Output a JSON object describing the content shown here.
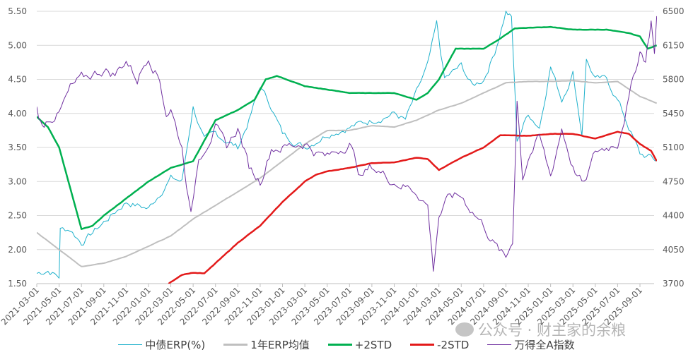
{
  "chart_data": {
    "type": "line",
    "title": "",
    "x_ticks": [
      "2021-03-01",
      "2021-05-01",
      "2021-07-01",
      "2021-09-01",
      "2021-11-01",
      "2022-01-01",
      "2022-03-01",
      "2022-05-01",
      "2022-07-01",
      "2022-09-01",
      "2022-11-01",
      "2023-01-01",
      "2023-03-01",
      "2023-05-01",
      "2023-07-01",
      "2023-09-01",
      "2023-11-01",
      "2024-01-01",
      "2024-03-01",
      "2024-05-01",
      "2024-07-01",
      "2024-09-01",
      "2024-11-01",
      "2025-01-01",
      "2025-03-01",
      "2025-05-01",
      "2025-07-01",
      "2025-09-01"
    ],
    "x_unit": "months since 2021-03",
    "y_left": {
      "min": 1.5,
      "max": 5.5,
      "ticks": [
        "1.50",
        "2.00",
        "2.50",
        "3.00",
        "3.50",
        "4.00",
        "4.50",
        "5.00",
        "5.50"
      ]
    },
    "y_right": {
      "min": 3700,
      "max": 6500,
      "ticks": [
        "3700",
        "4050",
        "4400",
        "4750",
        "5100",
        "5450",
        "5800",
        "6150",
        "6500"
      ]
    },
    "grid": "horizontal",
    "legend_position": "bottom",
    "series": [
      {
        "name": "中债ERP(%)",
        "axis": "left",
        "color": "#1fb1cc",
        "width": 1,
        "points": [
          [
            0,
            1.65
          ],
          [
            1,
            1.7
          ],
          [
            2,
            1.6
          ],
          [
            2.1,
            2.3
          ],
          [
            3,
            2.3
          ],
          [
            4,
            2.1
          ],
          [
            6,
            2.4
          ],
          [
            8,
            2.7
          ],
          [
            10,
            2.6
          ],
          [
            12,
            3.05
          ],
          [
            13,
            3.0
          ],
          [
            14,
            4.1
          ],
          [
            15,
            3.6
          ],
          [
            16,
            3.7
          ],
          [
            18,
            3.5
          ],
          [
            19,
            3.9
          ],
          [
            20,
            4.4
          ],
          [
            21,
            4.1
          ],
          [
            22,
            3.7
          ],
          [
            24,
            3.5
          ],
          [
            26,
            3.7
          ],
          [
            28,
            3.8
          ],
          [
            30,
            3.9
          ],
          [
            32,
            4.0
          ],
          [
            33,
            3.9
          ],
          [
            34,
            4.3
          ],
          [
            35,
            4.7
          ],
          [
            35.8,
            5.3
          ],
          [
            36.5,
            4.5
          ],
          [
            38,
            4.7
          ],
          [
            39,
            4.4
          ],
          [
            40,
            4.5
          ],
          [
            41,
            4.9
          ],
          [
            42,
            5.5
          ],
          [
            42.5,
            5.4
          ],
          [
            43,
            3.6
          ],
          [
            44,
            4.0
          ],
          [
            45,
            3.8
          ],
          [
            46,
            4.7
          ],
          [
            47,
            4.2
          ],
          [
            48,
            4.6
          ],
          [
            48.8,
            3.7
          ],
          [
            49.2,
            4.8
          ],
          [
            50,
            4.5
          ],
          [
            51,
            4.5
          ],
          [
            52,
            4.2
          ],
          [
            53,
            3.8
          ],
          [
            54,
            3.4
          ],
          [
            55,
            3.35
          ],
          [
            55.5,
            3.3
          ]
        ]
      },
      {
        "name": "1年ERP均值",
        "axis": "left",
        "color": "#bfbfbf",
        "width": 2,
        "points": [
          [
            0,
            2.25
          ],
          [
            2,
            2.0
          ],
          [
            4,
            1.75
          ],
          [
            6,
            1.8
          ],
          [
            8,
            1.9
          ],
          [
            10,
            2.05
          ],
          [
            12,
            2.2
          ],
          [
            14,
            2.45
          ],
          [
            16,
            2.65
          ],
          [
            18,
            2.85
          ],
          [
            20,
            3.05
          ],
          [
            22,
            3.3
          ],
          [
            24,
            3.55
          ],
          [
            26,
            3.75
          ],
          [
            28,
            3.75
          ],
          [
            30,
            3.82
          ],
          [
            32,
            3.8
          ],
          [
            34,
            3.9
          ],
          [
            36,
            4.05
          ],
          [
            38,
            4.15
          ],
          [
            40,
            4.3
          ],
          [
            42,
            4.45
          ],
          [
            44,
            4.47
          ],
          [
            46,
            4.47
          ],
          [
            48,
            4.48
          ],
          [
            50,
            4.45
          ],
          [
            52,
            4.47
          ],
          [
            54,
            4.25
          ],
          [
            55.5,
            4.15
          ]
        ]
      },
      {
        "name": "+2STD",
        "axis": "left",
        "color": "#00b050",
        "width": 2.5,
        "points": [
          [
            0,
            3.95
          ],
          [
            1,
            3.8
          ],
          [
            2,
            3.5
          ],
          [
            3,
            2.9
          ],
          [
            4,
            2.3
          ],
          [
            5,
            2.35
          ],
          [
            6,
            2.5
          ],
          [
            8,
            2.75
          ],
          [
            10,
            3.0
          ],
          [
            12,
            3.2
          ],
          [
            14,
            3.3
          ],
          [
            15,
            3.6
          ],
          [
            16,
            3.9
          ],
          [
            18,
            4.05
          ],
          [
            19.5,
            4.2
          ],
          [
            20.5,
            4.5
          ],
          [
            21.5,
            4.55
          ],
          [
            24,
            4.4
          ],
          [
            26,
            4.35
          ],
          [
            28,
            4.3
          ],
          [
            30,
            4.3
          ],
          [
            32,
            4.3
          ],
          [
            33,
            4.25
          ],
          [
            34,
            4.2
          ],
          [
            35,
            4.3
          ],
          [
            36,
            4.5
          ],
          [
            37.5,
            4.95
          ],
          [
            40,
            4.95
          ],
          [
            41.5,
            5.1
          ],
          [
            42.8,
            5.25
          ],
          [
            46,
            5.27
          ],
          [
            48,
            5.23
          ],
          [
            51,
            5.23
          ],
          [
            53,
            5.18
          ],
          [
            54,
            5.13
          ],
          [
            54.7,
            4.95
          ],
          [
            55.5,
            5.0
          ]
        ]
      },
      {
        "name": "-2STD",
        "axis": "left",
        "color": "#e31a1a",
        "width": 2.5,
        "points": [
          [
            11.8,
            1.5
          ],
          [
            13,
            1.63
          ],
          [
            14,
            1.66
          ],
          [
            15,
            1.65
          ],
          [
            16,
            1.8
          ],
          [
            18,
            2.1
          ],
          [
            20,
            2.35
          ],
          [
            22,
            2.7
          ],
          [
            23,
            2.85
          ],
          [
            24,
            3.0
          ],
          [
            25,
            3.1
          ],
          [
            26,
            3.15
          ],
          [
            28,
            3.2
          ],
          [
            30,
            3.27
          ],
          [
            32,
            3.28
          ],
          [
            34,
            3.35
          ],
          [
            35,
            3.33
          ],
          [
            36,
            3.17
          ],
          [
            38,
            3.35
          ],
          [
            40,
            3.5
          ],
          [
            41.5,
            3.68
          ],
          [
            44,
            3.67
          ],
          [
            46,
            3.7
          ],
          [
            48,
            3.7
          ],
          [
            50,
            3.63
          ],
          [
            52,
            3.73
          ],
          [
            53,
            3.7
          ],
          [
            54,
            3.55
          ],
          [
            55,
            3.45
          ],
          [
            55.5,
            3.3
          ]
        ]
      },
      {
        "name": "万得全A指数",
        "axis": "right",
        "color": "#7030a0",
        "width": 1,
        "points": [
          [
            0,
            5500
          ],
          [
            0.5,
            5300
          ],
          [
            1,
            5400
          ],
          [
            2,
            5450
          ],
          [
            3,
            5700
          ],
          [
            4,
            5800
          ],
          [
            6,
            5900
          ],
          [
            7,
            5850
          ],
          [
            8,
            6000
          ],
          [
            9,
            5800
          ],
          [
            10,
            6050
          ],
          [
            11,
            5800
          ],
          [
            11.6,
            5450
          ],
          [
            12,
            5500
          ],
          [
            13,
            5100
          ],
          [
            13.8,
            4400
          ],
          [
            14.5,
            5000
          ],
          [
            16,
            5300
          ],
          [
            17,
            5100
          ],
          [
            18,
            5300
          ],
          [
            19,
            4900
          ],
          [
            20,
            4750
          ],
          [
            21,
            5100
          ],
          [
            22,
            5100
          ],
          [
            24,
            5150
          ],
          [
            25,
            5050
          ],
          [
            26,
            5000
          ],
          [
            28,
            5150
          ],
          [
            29,
            4800
          ],
          [
            30,
            4900
          ],
          [
            32,
            4750
          ],
          [
            34,
            4650
          ],
          [
            35,
            4500
          ],
          [
            35.5,
            3850
          ],
          [
            36,
            4400
          ],
          [
            37,
            4600
          ],
          [
            38,
            4600
          ],
          [
            39,
            4450
          ],
          [
            40,
            4300
          ],
          [
            41,
            4100
          ],
          [
            42,
            3950
          ],
          [
            42.6,
            4150
          ],
          [
            43,
            5600
          ],
          [
            43.5,
            4800
          ],
          [
            44,
            5000
          ],
          [
            45,
            5200
          ],
          [
            46,
            4800
          ],
          [
            47,
            5300
          ],
          [
            48,
            4900
          ],
          [
            49,
            4700
          ],
          [
            50,
            5050
          ],
          [
            51,
            5100
          ],
          [
            52,
            5150
          ],
          [
            53,
            5600
          ],
          [
            54,
            6100
          ],
          [
            54.5,
            6000
          ],
          [
            55,
            6400
          ],
          [
            55.3,
            6100
          ],
          [
            55.5,
            6450
          ]
        ]
      }
    ],
    "watermark": "公众号 · 财主家的余粮"
  }
}
